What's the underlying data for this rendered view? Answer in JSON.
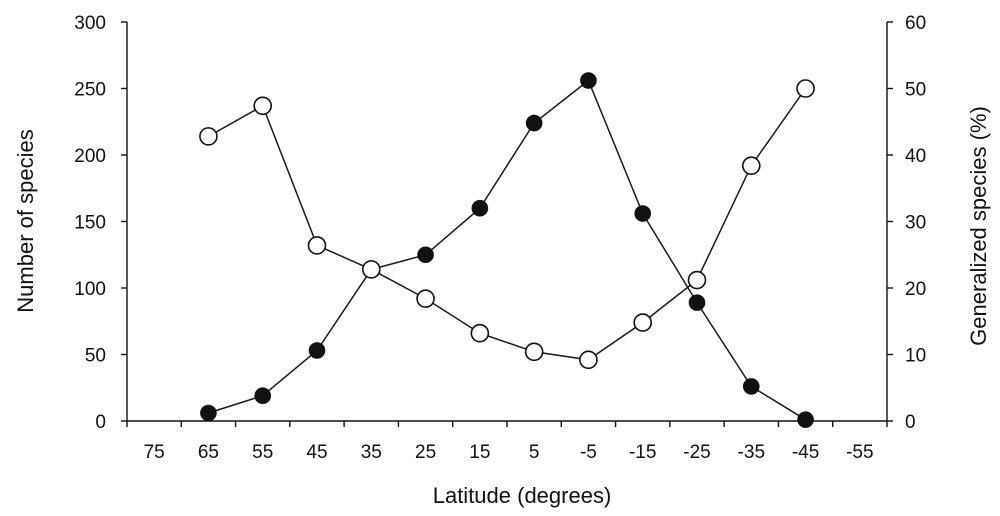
{
  "chart_data": {
    "type": "line",
    "x_label": "Latitude (degrees)",
    "y_left_label": "Number of species",
    "y_right_label": "Generalized species (%)",
    "categories": [
      "75",
      "65",
      "55",
      "45",
      "35",
      "25",
      "15",
      "5",
      "-5",
      "-15",
      "-25",
      "-35",
      "-45",
      "-55"
    ],
    "y_left_range": [
      0,
      300
    ],
    "y_left_ticks": [
      "0",
      "50",
      "100",
      "150",
      "200",
      "250",
      "300"
    ],
    "y_right_range": [
      0,
      60
    ],
    "y_right_ticks": [
      "0",
      "10",
      "20",
      "30",
      "40",
      "50",
      "60"
    ],
    "grid": false,
    "series": [
      {
        "marker": "filled-circle",
        "axis": "left",
        "color": "#111111",
        "x": [
          "65",
          "55",
          "45",
          "35",
          "25",
          "15",
          "5",
          "-5",
          "-15",
          "-25",
          "-35",
          "-45"
        ],
        "values": [
          6,
          19,
          53,
          114,
          125,
          160,
          224,
          256,
          156,
          89,
          26,
          1
        ]
      },
      {
        "marker": "open-circle",
        "axis": "right",
        "color": "#111111",
        "x": [
          "65",
          "55",
          "45",
          "35",
          "25",
          "15",
          "5",
          "-5",
          "-15",
          "-25",
          "-35",
          "-45"
        ],
        "values": [
          42.8,
          47.4,
          26.4,
          22.8,
          18.4,
          13.2,
          10.4,
          9.2,
          14.8,
          21.2,
          38.4,
          50
        ]
      }
    ]
  }
}
